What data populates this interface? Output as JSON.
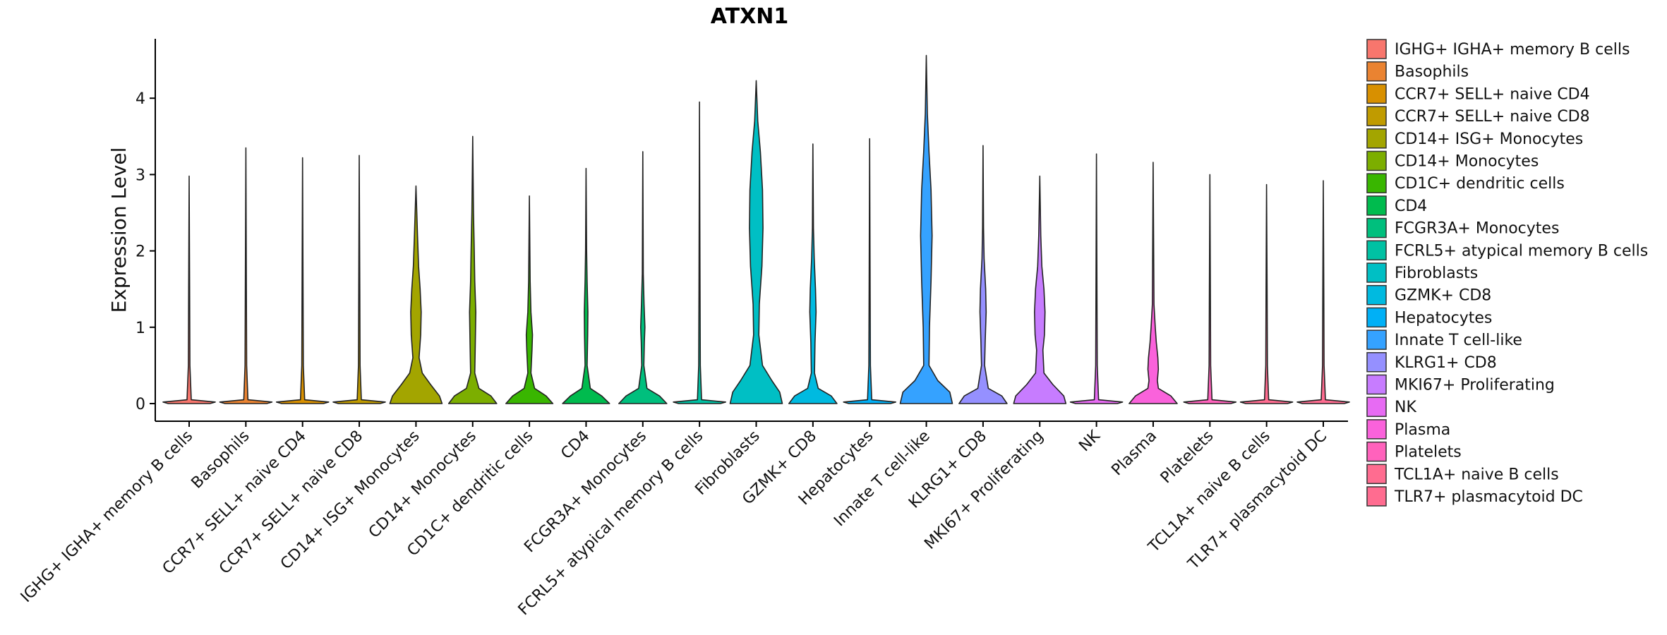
{
  "chart_data": {
    "type": "violin",
    "title": "ATXN1",
    "xlabel": "",
    "ylabel": "Expression Level",
    "ylim": [
      -0.2,
      4.8
    ],
    "yticks": [
      0,
      1,
      2,
      3,
      4
    ],
    "categories": [
      "IGHG+ IGHA+ memory B cells",
      "Basophils",
      "CCR7+ SELL+ naive CD4",
      "CCR7+ SELL+ naive CD8",
      "CD14+ ISG+ Monocytes",
      "CD14+ Monocytes",
      "CD1C+ dendritic cells",
      "CD4",
      "FCGR3A+ Monocytes",
      "FCRL5+ atypical memory B cells",
      "Fibroblasts",
      "GZMK+ CD8",
      "Hepatocytes",
      "Innate T cell-like",
      "KLRG1+ CD8",
      "MKI67+ Proliferating",
      "NK",
      "Plasma",
      "Platelets",
      "TCL1A+ naive B cells",
      "TLR7+ plasmacytoid DC"
    ],
    "colors": [
      "#F8766D",
      "#EA8331",
      "#D89000",
      "#C09B00",
      "#A3A500",
      "#7CAE00",
      "#39B600",
      "#00BB4E",
      "#00BF7D",
      "#00C1A3",
      "#00BFC4",
      "#00BAE0",
      "#00B0F6",
      "#35A2FF",
      "#9590FF",
      "#C77CFF",
      "#E76BF3",
      "#FA62DB",
      "#FF62BC",
      "#FF6C90",
      "#FF6C90"
    ],
    "max_values": [
      2.98,
      3.35,
      3.22,
      3.25,
      2.85,
      3.5,
      2.72,
      3.08,
      3.3,
      3.95,
      4.23,
      3.4,
      3.47,
      4.56,
      3.38,
      2.98,
      3.27,
      3.16,
      3.0,
      2.87,
      2.92
    ],
    "violin_profiles": [
      [
        [
          0,
          0.4
        ],
        [
          0.02,
          0.5
        ],
        [
          0.05,
          0.04
        ],
        [
          0.5,
          0.015
        ],
        [
          1.5,
          0.01
        ],
        [
          2.98,
          0
        ]
      ],
      [
        [
          0,
          0.4
        ],
        [
          0.02,
          0.5
        ],
        [
          0.05,
          0.04
        ],
        [
          0.5,
          0.015
        ],
        [
          1.5,
          0.01
        ],
        [
          3.35,
          0
        ]
      ],
      [
        [
          0,
          0.4
        ],
        [
          0.02,
          0.5
        ],
        [
          0.05,
          0.04
        ],
        [
          0.5,
          0.015
        ],
        [
          1.5,
          0.01
        ],
        [
          3.22,
          0
        ]
      ],
      [
        [
          0,
          0.4
        ],
        [
          0.02,
          0.5
        ],
        [
          0.05,
          0.04
        ],
        [
          0.5,
          0.015
        ],
        [
          1.5,
          0.01
        ],
        [
          3.25,
          0
        ]
      ],
      [
        [
          0,
          0.5
        ],
        [
          0.1,
          0.45
        ],
        [
          0.25,
          0.28
        ],
        [
          0.4,
          0.12
        ],
        [
          0.6,
          0.06
        ],
        [
          0.9,
          0.09
        ],
        [
          1.2,
          0.1
        ],
        [
          1.5,
          0.08
        ],
        [
          1.8,
          0.05
        ],
        [
          2.2,
          0.03
        ],
        [
          2.85,
          0
        ]
      ],
      [
        [
          0,
          0.46
        ],
        [
          0.1,
          0.35
        ],
        [
          0.2,
          0.12
        ],
        [
          0.4,
          0.04
        ],
        [
          0.8,
          0.05
        ],
        [
          1.2,
          0.06
        ],
        [
          1.6,
          0.04
        ],
        [
          2.0,
          0.03
        ],
        [
          2.5,
          0.015
        ],
        [
          3.5,
          0
        ]
      ],
      [
        [
          0,
          0.45
        ],
        [
          0.1,
          0.32
        ],
        [
          0.2,
          0.1
        ],
        [
          0.4,
          0.03
        ],
        [
          0.7,
          0.05
        ],
        [
          0.9,
          0.06
        ],
        [
          1.2,
          0.03
        ],
        [
          1.6,
          0.015
        ],
        [
          2.72,
          0
        ]
      ],
      [
        [
          0,
          0.45
        ],
        [
          0.1,
          0.3
        ],
        [
          0.2,
          0.08
        ],
        [
          0.5,
          0.02
        ],
        [
          0.9,
          0.03
        ],
        [
          1.2,
          0.035
        ],
        [
          1.6,
          0.02
        ],
        [
          2.0,
          0.01
        ],
        [
          3.08,
          0
        ]
      ],
      [
        [
          0,
          0.46
        ],
        [
          0.1,
          0.32
        ],
        [
          0.2,
          0.08
        ],
        [
          0.5,
          0.02
        ],
        [
          0.8,
          0.03
        ],
        [
          1.0,
          0.04
        ],
        [
          1.3,
          0.025
        ],
        [
          1.7,
          0.01
        ],
        [
          3.3,
          0
        ]
      ],
      [
        [
          0,
          0.4
        ],
        [
          0.02,
          0.5
        ],
        [
          0.05,
          0.04
        ],
        [
          0.5,
          0.015
        ],
        [
          1.5,
          0.01
        ],
        [
          3.95,
          0
        ]
      ],
      [
        [
          0,
          0.5
        ],
        [
          0.15,
          0.45
        ],
        [
          0.3,
          0.3
        ],
        [
          0.5,
          0.12
        ],
        [
          0.9,
          0.05
        ],
        [
          1.3,
          0.06
        ],
        [
          1.8,
          0.11
        ],
        [
          2.3,
          0.13
        ],
        [
          2.8,
          0.12
        ],
        [
          3.3,
          0.08
        ],
        [
          3.7,
          0.03
        ],
        [
          4.23,
          0
        ]
      ],
      [
        [
          0,
          0.46
        ],
        [
          0.1,
          0.35
        ],
        [
          0.2,
          0.1
        ],
        [
          0.4,
          0.03
        ],
        [
          0.8,
          0.04
        ],
        [
          1.2,
          0.06
        ],
        [
          1.5,
          0.05
        ],
        [
          1.9,
          0.025
        ],
        [
          2.3,
          0.01
        ],
        [
          3.4,
          0
        ]
      ],
      [
        [
          0,
          0.4
        ],
        [
          0.02,
          0.5
        ],
        [
          0.05,
          0.04
        ],
        [
          0.5,
          0.015
        ],
        [
          1.5,
          0.01
        ],
        [
          3.47,
          0
        ]
      ],
      [
        [
          0,
          0.5
        ],
        [
          0.15,
          0.45
        ],
        [
          0.3,
          0.22
        ],
        [
          0.5,
          0.05
        ],
        [
          1.0,
          0.06
        ],
        [
          1.6,
          0.09
        ],
        [
          2.2,
          0.11
        ],
        [
          2.8,
          0.09
        ],
        [
          3.3,
          0.05
        ],
        [
          3.8,
          0.02
        ],
        [
          4.56,
          0
        ]
      ],
      [
        [
          0,
          0.46
        ],
        [
          0.1,
          0.36
        ],
        [
          0.2,
          0.1
        ],
        [
          0.5,
          0.03
        ],
        [
          0.8,
          0.04
        ],
        [
          1.2,
          0.06
        ],
        [
          1.5,
          0.05
        ],
        [
          1.9,
          0.02
        ],
        [
          2.3,
          0.01
        ],
        [
          3.38,
          0
        ]
      ],
      [
        [
          0,
          0.5
        ],
        [
          0.1,
          0.46
        ],
        [
          0.25,
          0.25
        ],
        [
          0.4,
          0.08
        ],
        [
          0.7,
          0.06
        ],
        [
          0.9,
          0.09
        ],
        [
          1.2,
          0.1
        ],
        [
          1.5,
          0.08
        ],
        [
          1.8,
          0.04
        ],
        [
          2.2,
          0.02
        ],
        [
          2.98,
          0
        ]
      ],
      [
        [
          0,
          0.4
        ],
        [
          0.02,
          0.5
        ],
        [
          0.05,
          0.04
        ],
        [
          0.5,
          0.015
        ],
        [
          1.5,
          0.01
        ],
        [
          3.27,
          0
        ]
      ],
      [
        [
          0,
          0.46
        ],
        [
          0.1,
          0.34
        ],
        [
          0.2,
          0.1
        ],
        [
          0.3,
          0.08
        ],
        [
          0.45,
          0.1
        ],
        [
          0.6,
          0.09
        ],
        [
          0.8,
          0.06
        ],
        [
          1.0,
          0.04
        ],
        [
          1.3,
          0.015
        ],
        [
          3.16,
          0
        ]
      ],
      [
        [
          0,
          0.4
        ],
        [
          0.02,
          0.5
        ],
        [
          0.05,
          0.04
        ],
        [
          0.5,
          0.015
        ],
        [
          1.5,
          0.01
        ],
        [
          3.0,
          0
        ]
      ],
      [
        [
          0,
          0.4
        ],
        [
          0.02,
          0.5
        ],
        [
          0.05,
          0.04
        ],
        [
          0.5,
          0.015
        ],
        [
          1.5,
          0.01
        ],
        [
          2.87,
          0
        ]
      ],
      [
        [
          0,
          0.4
        ],
        [
          0.02,
          0.5
        ],
        [
          0.05,
          0.04
        ],
        [
          0.5,
          0.015
        ],
        [
          1.5,
          0.01
        ],
        [
          2.92,
          0
        ]
      ]
    ],
    "legend": {
      "position": "right",
      "entries": [
        " IGHG+ IGHA+ memory B cells",
        "Basophils",
        "CCR7+ SELL+ naive CD4",
        "CCR7+ SELL+ naive CD8",
        "CD14+ ISG+ Monocytes",
        "CD14+ Monocytes",
        "CD1C+ dendritic cells",
        "CD4",
        "FCGR3A+ Monocytes",
        "FCRL5+ atypical memory B cells",
        "Fibroblasts",
        "GZMK+ CD8",
        "Hepatocytes",
        "Innate T cell-like",
        "KLRG1+ CD8",
        "MKI67+ Proliferating",
        "NK",
        "Plasma",
        "Platelets",
        "TCL1A+ naive B cells",
        "TLR7+ plasmacytoid DC"
      ]
    },
    "grid": false
  }
}
